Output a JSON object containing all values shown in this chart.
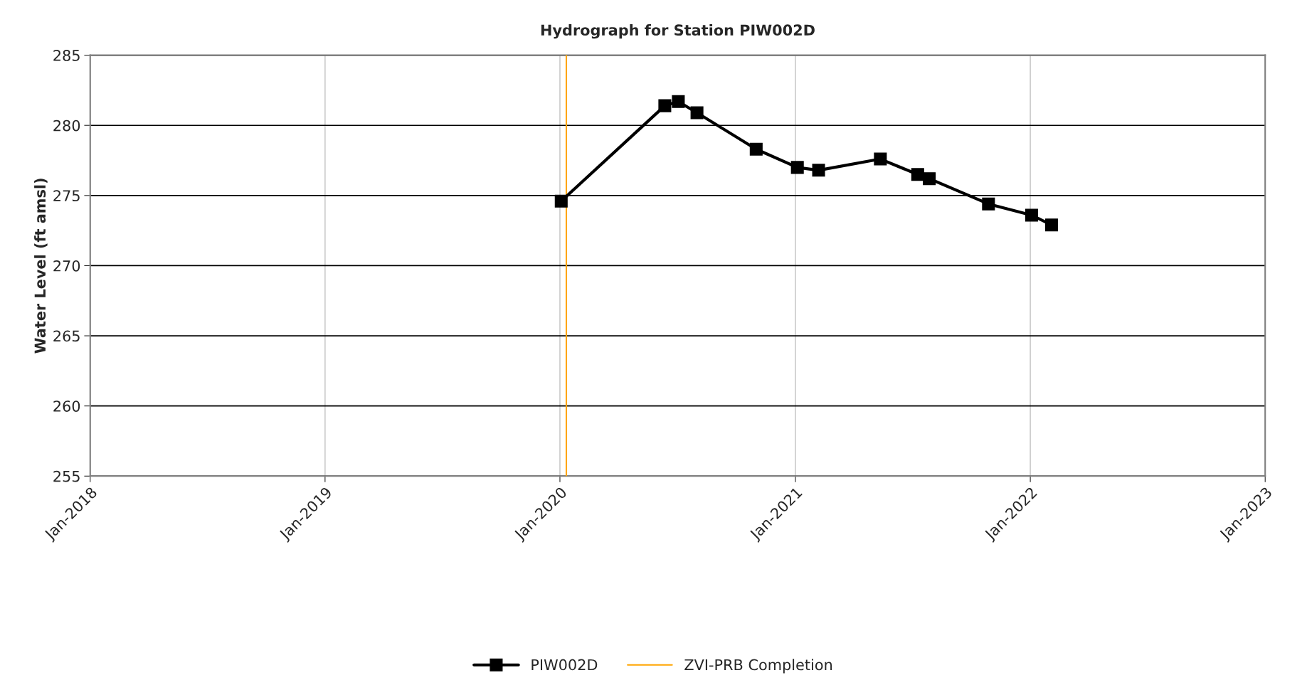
{
  "chart_data": {
    "type": "line",
    "title": "Hydrograph for Station PIW002D",
    "ylabel": "Water Level (ft amsl)",
    "xlim": [
      "2018-01-01",
      "2023-01-01"
    ],
    "xticks": [
      {
        "value": "2018-01-01",
        "label": "Jan-2018"
      },
      {
        "value": "2019-01-01",
        "label": "Jan-2019"
      },
      {
        "value": "2020-01-01",
        "label": "Jan-2020"
      },
      {
        "value": "2021-01-01",
        "label": "Jan-2021"
      },
      {
        "value": "2022-01-01",
        "label": "Jan-2022"
      },
      {
        "value": "2023-01-01",
        "label": "Jan-2023"
      }
    ],
    "ylim": [
      255,
      285
    ],
    "yticks": [
      255,
      260,
      265,
      270,
      275,
      280,
      285
    ],
    "x": [
      "2020-01-03",
      "2020-06-12",
      "2020-07-03",
      "2020-08-01",
      "2020-11-01",
      "2021-01-04",
      "2021-02-06",
      "2021-05-13",
      "2021-07-10",
      "2021-07-28",
      "2021-10-28",
      "2022-01-03",
      "2022-02-03"
    ],
    "series": [
      {
        "name": "PIW002D",
        "color": "#000000",
        "values": [
          274.6,
          281.4,
          281.7,
          280.9,
          278.3,
          277.0,
          276.8,
          277.6,
          276.5,
          276.2,
          274.4,
          273.6,
          272.9
        ]
      }
    ],
    "ref_lines": [
      {
        "axis": "x",
        "value": "2020-01-11",
        "label": "ZVI-PRB Completion",
        "color": "#ffa500",
        "line_style": "solid"
      }
    ],
    "marker": "square",
    "line_style": "solid",
    "grid": true,
    "legend": "bottom"
  }
}
